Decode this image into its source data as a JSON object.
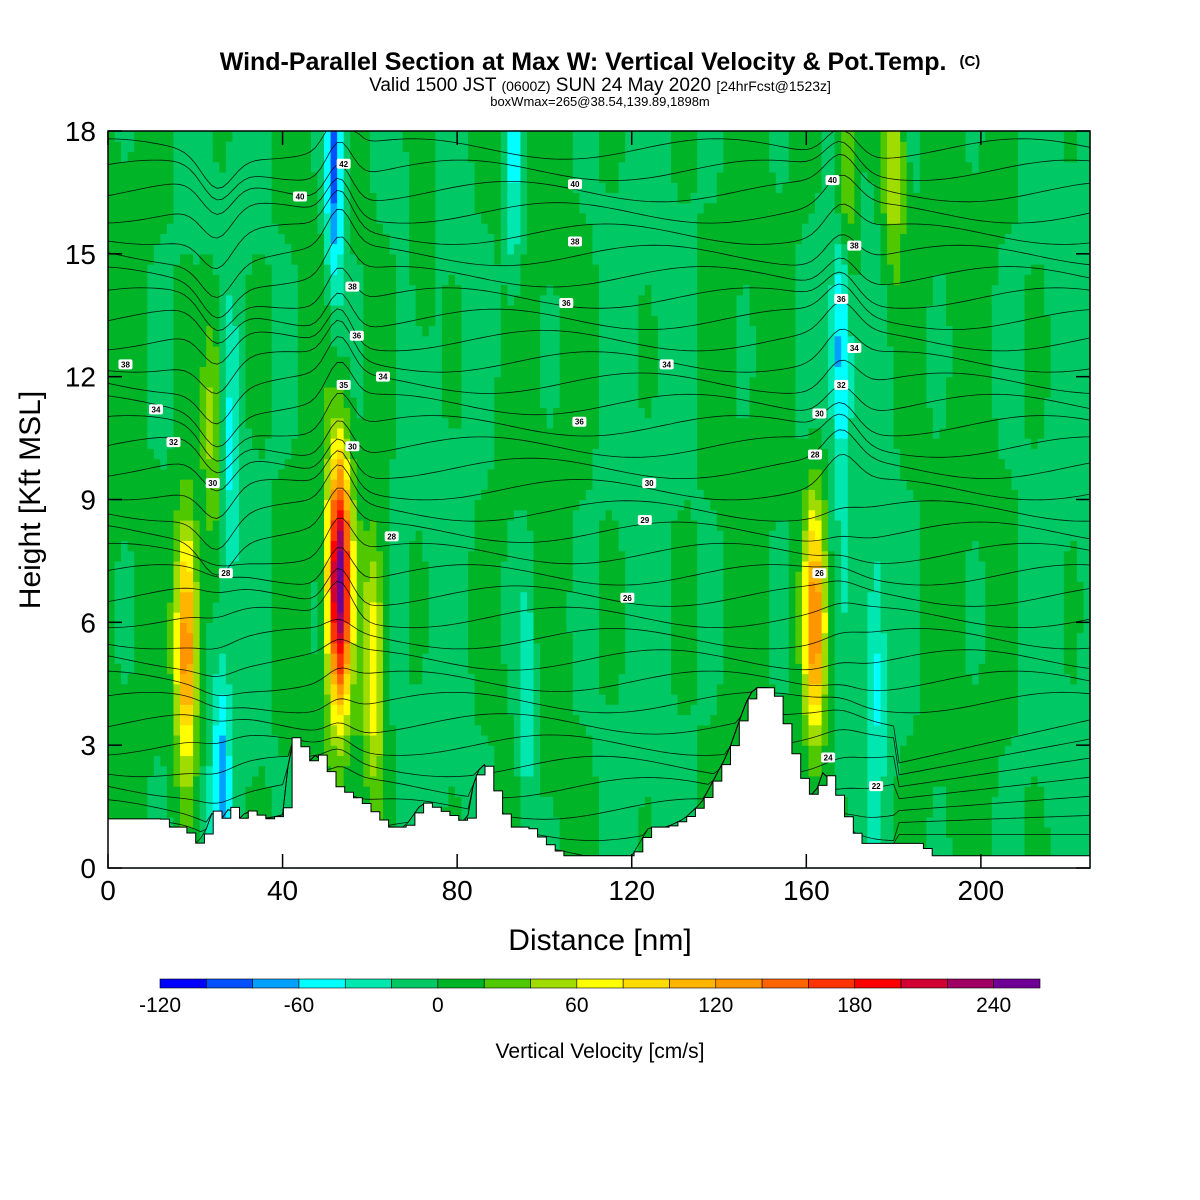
{
  "chart_data": {
    "type": "heatmap",
    "title": "Wind-Parallel Section at Max W: Vertical Velocity & Pot.Temp.",
    "title_mark": "(C)",
    "subtitle": {
      "valid": "Valid 1500 JST",
      "zulu": "(0600Z)",
      "date": "SUN 24 May 2020",
      "fcst": "[24hrFcst@1523z]"
    },
    "boxline": "boxWmax=265@38.54,139.89,1898m",
    "xlabel": "Distance [nm]",
    "ylabel": "Height [Kft MSL]",
    "xlim": [
      0,
      225
    ],
    "ylim": [
      0,
      18
    ],
    "x_ticks": [
      "0",
      "40",
      "80",
      "120",
      "160",
      "200"
    ],
    "y_ticks": [
      "0",
      "3",
      "6",
      "9",
      "12",
      "15",
      "18"
    ],
    "colorbar": {
      "label": "Vertical Velocity [cm/s]",
      "min": -120,
      "max": 260,
      "step": 20,
      "tick_labels": [
        "-120",
        "-60",
        "0",
        "60",
        "120",
        "180",
        "240"
      ],
      "colors": [
        "#0000ff",
        "#0050ff",
        "#00a0ff",
        "#00ffff",
        "#00e8b0",
        "#00c864",
        "#00b428",
        "#50c800",
        "#a0dc00",
        "#ffff00",
        "#ffdc00",
        "#ffb400",
        "#ff9600",
        "#ff6400",
        "#ff3200",
        "#ff0000",
        "#d20032",
        "#a00064",
        "#6e0096"
      ]
    },
    "background_value": 0,
    "updrafts": [
      {
        "x": 18,
        "z": 5.5,
        "peak": 150
      },
      {
        "x": 53,
        "z": 7.0,
        "peak": 250
      },
      {
        "x": 61,
        "z": 5.0,
        "peak": 80
      },
      {
        "x": 162,
        "z": 6.0,
        "peak": 135
      },
      {
        "x": 24,
        "z": 11.0,
        "peak": 60
      },
      {
        "x": 169,
        "z": 17.0,
        "peak": 65
      },
      {
        "x": 180,
        "z": 17.5,
        "peak": 65
      },
      {
        "x": 72,
        "z": 15.0,
        "peak": 30
      }
    ],
    "downdrafts": [
      {
        "x": 52,
        "z": 17.0,
        "peak": -95
      },
      {
        "x": 168,
        "z": 13.0,
        "peak": -80
      },
      {
        "x": 96,
        "z": 4.0,
        "peak": -45
      },
      {
        "x": 26,
        "z": 2.0,
        "peak": -60
      },
      {
        "x": 176,
        "z": 5.0,
        "peak": -45
      },
      {
        "x": 93,
        "z": 17.0,
        "peak": -45
      },
      {
        "x": 28,
        "z": 10.0,
        "peak": -40
      }
    ],
    "terrain": [
      [
        0,
        1.2
      ],
      [
        10,
        1.2
      ],
      [
        12,
        1.2
      ],
      [
        14,
        1.0
      ],
      [
        17,
        1.0
      ],
      [
        20,
        0.6
      ],
      [
        22,
        0.8
      ],
      [
        24,
        1.4
      ],
      [
        26,
        1.2
      ],
      [
        28,
        1.5
      ],
      [
        30,
        1.2
      ],
      [
        32,
        1.4
      ],
      [
        36,
        1.2
      ],
      [
        40,
        1.3
      ],
      [
        42,
        3.2
      ],
      [
        44,
        3.0
      ],
      [
        46,
        2.6
      ],
      [
        48,
        2.8
      ],
      [
        50,
        2.4
      ],
      [
        52,
        2.0
      ],
      [
        55,
        1.8
      ],
      [
        58,
        1.6
      ],
      [
        60,
        1.4
      ],
      [
        62,
        1.2
      ],
      [
        64,
        1.0
      ],
      [
        68,
        1.0
      ],
      [
        72,
        1.6
      ],
      [
        76,
        1.4
      ],
      [
        80,
        1.2
      ],
      [
        82,
        1.0
      ],
      [
        84,
        2.2
      ],
      [
        86,
        2.6
      ],
      [
        88,
        2.0
      ],
      [
        90,
        1.4
      ],
      [
        92,
        1.0
      ],
      [
        96,
        1.0
      ],
      [
        100,
        0.6
      ],
      [
        104,
        0.3
      ],
      [
        108,
        0.3
      ],
      [
        112,
        0.3
      ],
      [
        116,
        0.3
      ],
      [
        120,
        0.3
      ],
      [
        124,
        1.0
      ],
      [
        128,
        1.0
      ],
      [
        132,
        1.2
      ],
      [
        136,
        1.6
      ],
      [
        138,
        2.0
      ],
      [
        140,
        2.4
      ],
      [
        142,
        2.8
      ],
      [
        144,
        3.4
      ],
      [
        146,
        4.0
      ],
      [
        148,
        4.4
      ],
      [
        152,
        4.4
      ],
      [
        154,
        3.8
      ],
      [
        156,
        3.0
      ],
      [
        158,
        2.4
      ],
      [
        160,
        1.8
      ],
      [
        162,
        1.8
      ],
      [
        164,
        2.4
      ],
      [
        166,
        2.0
      ],
      [
        168,
        1.4
      ],
      [
        170,
        1.0
      ],
      [
        172,
        0.6
      ],
      [
        176,
        0.6
      ],
      [
        186,
        0.6
      ],
      [
        188,
        0.3
      ],
      [
        200,
        0.3
      ],
      [
        210,
        0.3
      ],
      [
        225,
        0.3
      ]
    ],
    "isentrope_labels": [
      {
        "x": 4,
        "z": 12.3,
        "text": "38"
      },
      {
        "x": 11,
        "z": 11.2,
        "text": "34"
      },
      {
        "x": 15,
        "z": 10.4,
        "text": "32"
      },
      {
        "x": 24,
        "z": 9.4,
        "text": "30"
      },
      {
        "x": 27,
        "z": 7.2,
        "text": "28"
      },
      {
        "x": 44,
        "z": 16.4,
        "text": "40"
      },
      {
        "x": 54,
        "z": 17.2,
        "text": "42"
      },
      {
        "x": 56,
        "z": 14.2,
        "text": "38"
      },
      {
        "x": 57,
        "z": 13.0,
        "text": "36"
      },
      {
        "x": 54,
        "z": 11.8,
        "text": "35"
      },
      {
        "x": 63,
        "z": 12.0,
        "text": "34"
      },
      {
        "x": 56,
        "z": 10.3,
        "text": "30"
      },
      {
        "x": 65,
        "z": 8.1,
        "text": "28"
      },
      {
        "x": 107,
        "z": 16.7,
        "text": "40"
      },
      {
        "x": 107,
        "z": 15.3,
        "text": "38"
      },
      {
        "x": 105,
        "z": 13.8,
        "text": "36"
      },
      {
        "x": 108,
        "z": 10.9,
        "text": "36"
      },
      {
        "x": 128,
        "z": 12.3,
        "text": "34"
      },
      {
        "x": 124,
        "z": 9.4,
        "text": "30"
      },
      {
        "x": 123,
        "z": 8.5,
        "text": "29"
      },
      {
        "x": 119,
        "z": 6.6,
        "text": "26"
      },
      {
        "x": 166,
        "z": 16.8,
        "text": "40"
      },
      {
        "x": 171,
        "z": 15.2,
        "text": "38"
      },
      {
        "x": 168,
        "z": 13.9,
        "text": "36"
      },
      {
        "x": 171,
        "z": 12.7,
        "text": "34"
      },
      {
        "x": 168,
        "z": 11.8,
        "text": "32"
      },
      {
        "x": 163,
        "z": 11.1,
        "text": "30"
      },
      {
        "x": 162,
        "z": 10.1,
        "text": "28"
      },
      {
        "x": 163,
        "z": 7.2,
        "text": "26"
      },
      {
        "x": 165,
        "z": 2.7,
        "text": "24"
      },
      {
        "x": 176,
        "z": 2.0,
        "text": "22"
      }
    ]
  }
}
